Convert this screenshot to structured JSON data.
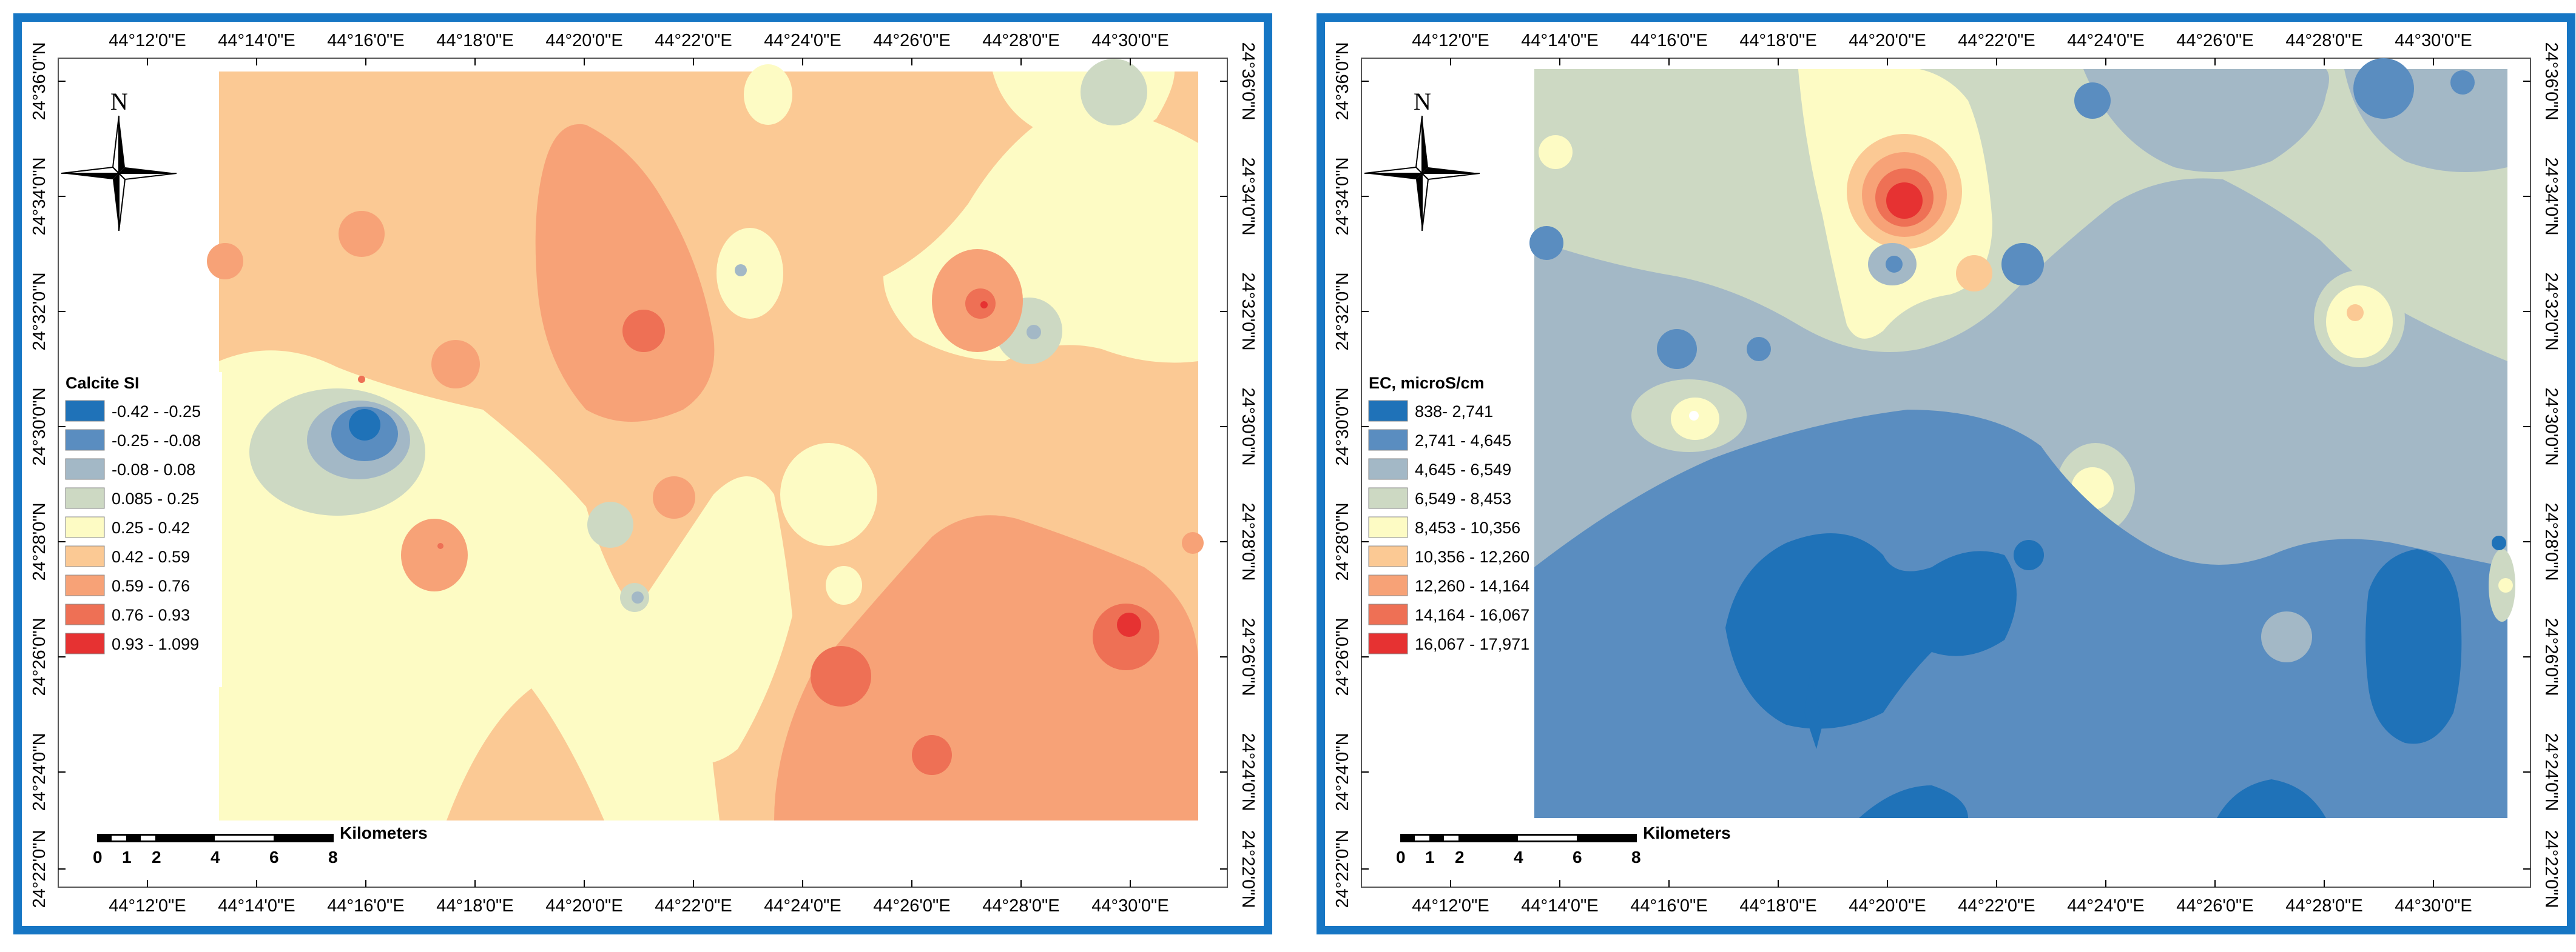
{
  "left_map": {
    "legend_title": "Calcite SI",
    "legend": [
      {
        "label": "-0.42 -  -0.25",
        "color": "#1f72b8"
      },
      {
        "label": "-0.25 - -0.08",
        "color": "#5a8dc0"
      },
      {
        "label": "-0.08 - 0.08",
        "color": "#a3b8c6"
      },
      {
        "label": "0.085 - 0.25",
        "color": "#cdd9c3"
      },
      {
        "label": "0.25 - 0.42",
        "color": "#fdfbc4"
      },
      {
        "label": "0.42 - 0.59",
        "color": "#fbc994"
      },
      {
        "label": "0.59 - 0.76",
        "color": "#f7a277"
      },
      {
        "label": "0.76 - 0.93",
        "color": "#ee7055"
      },
      {
        "label": "0.93 - 1.099",
        "color": "#e63232"
      }
    ],
    "scale_label": "Kilometers",
    "scale_ticks": [
      "0",
      "1",
      "2",
      "4",
      "6",
      "8"
    ]
  },
  "right_map": {
    "legend_title": "EC, microS/cm",
    "legend": [
      {
        "label": "838- 2,741",
        "color": "#1f72b8"
      },
      {
        "label": "2,741 - 4,645",
        "color": "#5a8dc0"
      },
      {
        "label": "4,645 - 6,549",
        "color": "#a3b8c6"
      },
      {
        "label": "6,549 - 8,453",
        "color": "#cdd9c3"
      },
      {
        "label": "8,453 - 10,356",
        "color": "#fdfbc4"
      },
      {
        "label": "10,356 - 12,260",
        "color": "#fbc994"
      },
      {
        "label": "12,260 - 14,164",
        "color": "#f7a277"
      },
      {
        "label": "14,164 - 16,067",
        "color": "#ee7055"
      },
      {
        "label": "16,067 - 17,971",
        "color": "#e63232"
      }
    ],
    "scale_label": "Kilometers",
    "scale_ticks": [
      "0",
      "1",
      "2",
      "4",
      "6",
      "8"
    ]
  },
  "north_label": "N",
  "longitude_ticks_top": [
    "44°12'0\"E",
    "44°14'0\"E",
    "44°16'0\"E",
    "44°18'0\"E",
    "44°20'0\"E",
    "44°22'0\"E",
    "44°24'0\"E",
    "44°26'0\"E",
    "44°28'0\"E",
    "44°30'0\"E"
  ],
  "longitude_ticks_bottom": [
    "44°12'0\"E",
    "44°14'0\"E",
    "44°16'0\"E",
    "44°18'0\"E",
    "44°20'0\"E",
    "44°22'0\"E",
    "44°24'0\"E",
    "44°26'0\"E",
    "44°28'0\"E",
    "44°30'0\"E"
  ],
  "latitude_ticks": [
    "24°36'0\"N",
    "24°34'0\"N",
    "24°32'0\"N",
    "24°30'0\"N",
    "24°28'0\"N",
    "24°26'0\"N",
    "24°24'0\"N",
    "24°22'0\"N"
  ]
}
